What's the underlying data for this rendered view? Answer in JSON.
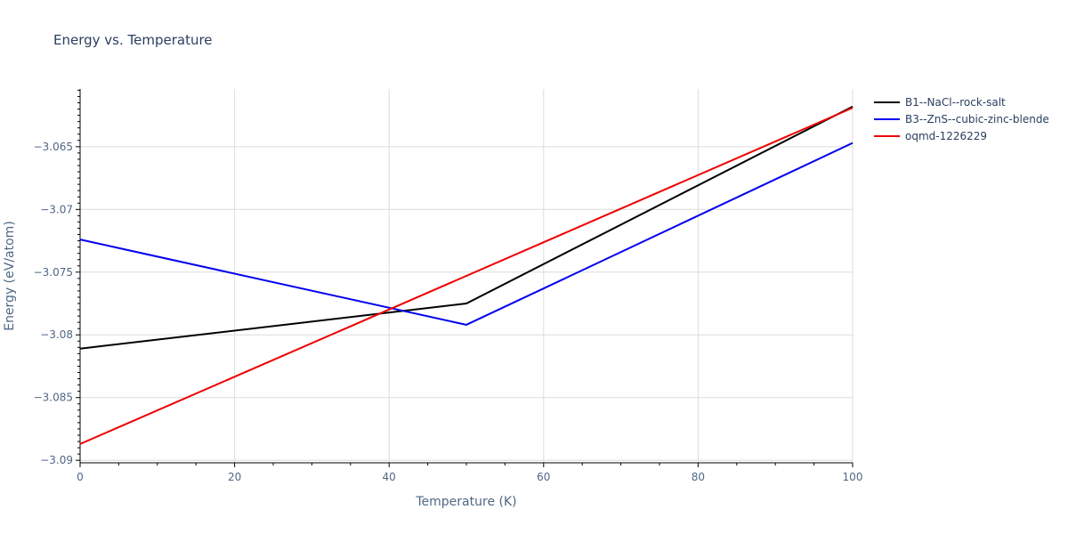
{
  "chart_data": {
    "type": "line",
    "title": "Energy vs. Temperature",
    "xlabel": "Temperature (K)",
    "ylabel": "Energy (eV/atom)",
    "xlim": [
      0,
      100
    ],
    "ylim": [
      -3.0902,
      -3.0604
    ],
    "x_ticks": [
      0,
      20,
      40,
      60,
      80,
      100
    ],
    "x_tick_labels": [
      "0",
      "20",
      "40",
      "60",
      "80",
      "100"
    ],
    "y_ticks": [
      -3.09,
      -3.085,
      -3.08,
      -3.075,
      -3.07,
      -3.065
    ],
    "y_tick_labels": [
      "−3.09",
      "−3.085",
      "−3.08",
      "−3.075",
      "−3.07",
      "−3.065"
    ],
    "grid": true,
    "legend_position": "top-right",
    "series": [
      {
        "name": "B1--NaCl--rock-salt",
        "color": "#000000",
        "x": [
          0,
          50,
          100
        ],
        "y": [
          -3.0811,
          -3.0775,
          -3.0618
        ]
      },
      {
        "name": "B3--ZnS--cubic-zinc-blende",
        "color": "#0000ee",
        "x": [
          0,
          50,
          100
        ],
        "y": [
          -3.0724,
          -3.0792,
          -3.0647
        ]
      },
      {
        "name": "oqmd-1226229",
        "color": "#ee0000",
        "x": [
          0,
          100
        ],
        "y": [
          -3.0887,
          -3.0619
        ]
      }
    ]
  }
}
